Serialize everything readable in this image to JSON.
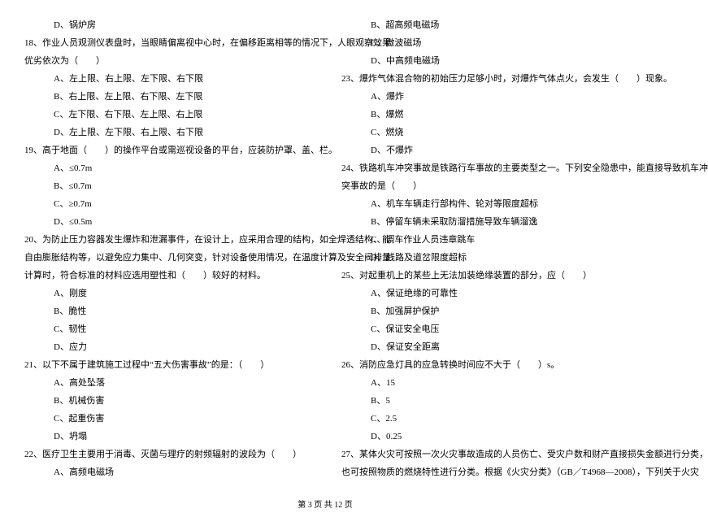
{
  "left": [
    {
      "cls": "indent2",
      "text": "D、锅炉房"
    },
    {
      "cls": "qtext",
      "text": "18、作业人员观测仪表盘时，当眼睛偏离视中心时，在偏移距离相等的情况下，人眼观察效果"
    },
    {
      "cls": "qtext",
      "text": "优劣依次为（　　）"
    },
    {
      "cls": "indent2",
      "text": "A、左上限、右上限、左下限、右下限"
    },
    {
      "cls": "indent2",
      "text": "B、右上限、左上限、右下限、左下限"
    },
    {
      "cls": "indent2",
      "text": "C、左下限、右下限、左上限、右上限"
    },
    {
      "cls": "indent2",
      "text": "D、左上限、左下限、右上限、右下限"
    },
    {
      "cls": "qtext",
      "text": "19、高于地面（　　）的操作平台或需巡视设备的平台，应装防护罩、盖、栏。"
    },
    {
      "cls": "indent2",
      "text": "A、≤0.7m"
    },
    {
      "cls": "indent2",
      "text": "B、≤0.7m"
    },
    {
      "cls": "indent2",
      "text": "C、≥0.7m"
    },
    {
      "cls": "indent2",
      "text": "D、≤0.5m"
    },
    {
      "cls": "qtext",
      "text": "20、为防止压力容器发生爆炸和泄漏事件，在设计上，应采用合理的结构，如全焊透结构、能"
    },
    {
      "cls": "qtext",
      "text": "自由膨胀结构等，以避免应力集中、几何突变，针对设备使用情况，在温度计算及安全阀排量"
    },
    {
      "cls": "qtext",
      "text": "计算时，符合标准的材料应选用塑性和（　　）较好的材料。"
    },
    {
      "cls": "indent2",
      "text": "A、刚度"
    },
    {
      "cls": "indent2",
      "text": "B、脆性"
    },
    {
      "cls": "indent2",
      "text": "C、韧性"
    },
    {
      "cls": "indent2",
      "text": "D、应力"
    },
    {
      "cls": "qtext",
      "text": "21、以下不属于建筑施工过程中“五大伤害事故”的是：（　　）"
    },
    {
      "cls": "indent2",
      "text": "A、高处坠落"
    },
    {
      "cls": "indent2",
      "text": "B、机械伤害"
    },
    {
      "cls": "indent2",
      "text": "C、起重伤害"
    },
    {
      "cls": "indent2",
      "text": "D、坍塌"
    },
    {
      "cls": "qtext",
      "text": "22、医疗卫生主要用于消毒、灭菌与理疗的射频辐射的波段为（　　）"
    },
    {
      "cls": "indent2",
      "text": "A、高频电磁场"
    }
  ],
  "right": [
    {
      "cls": "indent2",
      "text": "B、超高频电磁场"
    },
    {
      "cls": "indent2",
      "text": "C、微波磁场"
    },
    {
      "cls": "indent2",
      "text": "D、中高频电磁场"
    },
    {
      "cls": "qtext",
      "text": "23、爆炸气体混合物的初始压力足够小时，对爆炸气体点火，会发生（　　）现象。"
    },
    {
      "cls": "indent2",
      "text": "A、爆炸"
    },
    {
      "cls": "indent2",
      "text": "B、爆燃"
    },
    {
      "cls": "indent2",
      "text": "C、燃烧"
    },
    {
      "cls": "indent2",
      "text": "D、不爆炸"
    },
    {
      "cls": "qtext",
      "text": "24、铁路机车冲突事故是铁路行车事故的主要类型之一。下列安全隐患中，能直接导致机车冲"
    },
    {
      "cls": "qtext",
      "text": "突事故的是（　　）"
    },
    {
      "cls": "indent2",
      "text": "A、机车车辆走行部构件、轮对等限度超标"
    },
    {
      "cls": "indent2",
      "text": "B、停留车辆未采取防溜措施导致车辆溜逸"
    },
    {
      "cls": "indent2",
      "text": "C、调车作业人员违章跳车"
    },
    {
      "cls": "indent2",
      "text": "D、线路及道岔限度超标"
    },
    {
      "cls": "qtext",
      "text": "25、对起重机上的某些上无法加装绝缘装置的部分，应（　　）"
    },
    {
      "cls": "indent2",
      "text": "A、保证绝缘的可靠性"
    },
    {
      "cls": "indent2",
      "text": "B、加强屏护保护"
    },
    {
      "cls": "indent2",
      "text": "C、保证安全电压"
    },
    {
      "cls": "indent2",
      "text": "D、保证安全距离"
    },
    {
      "cls": "qtext",
      "text": "26、消防应急灯具的应急转换时间应不大于（　　）s。"
    },
    {
      "cls": "indent2",
      "text": "A、15"
    },
    {
      "cls": "indent2",
      "text": "B、5"
    },
    {
      "cls": "indent2",
      "text": "C、2.5"
    },
    {
      "cls": "indent2",
      "text": "D、0.25"
    },
    {
      "cls": "qtext",
      "text": "27、某体火灾可按照一次火灾事故造成的人员伤亡、受灾户数和财产直接损失金额进行分类，"
    },
    {
      "cls": "qtext",
      "text": "也可按照物质的燃烧特性进行分类。根据《火灾分类》（GB／T4968—2008），下列关于火灾"
    }
  ],
  "footer": "第 3 页 共 12 页"
}
